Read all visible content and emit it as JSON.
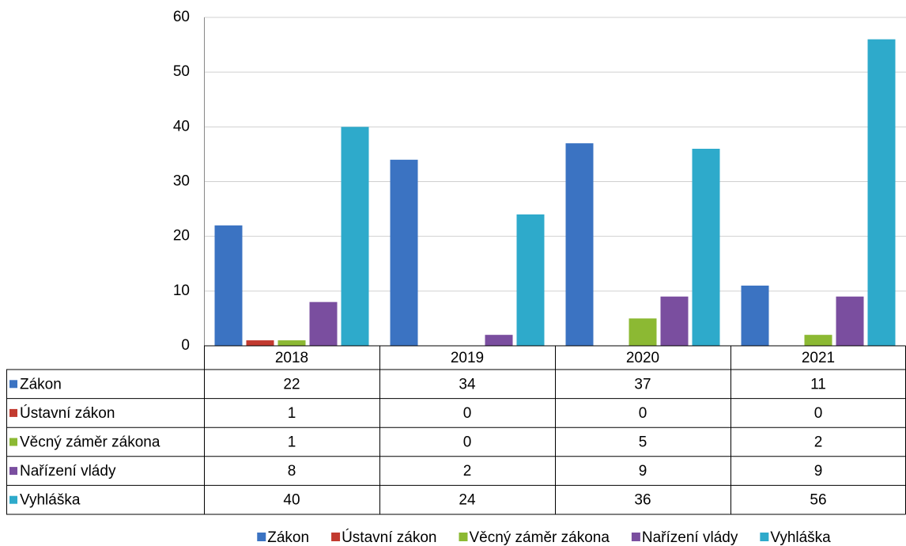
{
  "chart_data": {
    "type": "bar",
    "categories": [
      "2018",
      "2019",
      "2020",
      "2021"
    ],
    "series": [
      {
        "name": "Zákon",
        "color": "#3b73c2",
        "values": [
          22,
          34,
          37,
          11
        ]
      },
      {
        "name": "Ústavní zákon",
        "color": "#c23a2f",
        "values": [
          1,
          0,
          0,
          0
        ]
      },
      {
        "name": "Věcný záměr zákona",
        "color": "#8cb933",
        "values": [
          1,
          0,
          5,
          2
        ]
      },
      {
        "name": "Nařízení vlády",
        "color": "#7a4e9f",
        "values": [
          8,
          2,
          9,
          9
        ]
      },
      {
        "name": "Vyhláška",
        "color": "#2eaacb",
        "values": [
          40,
          24,
          36,
          56
        ]
      }
    ],
    "ylim": [
      0,
      60
    ],
    "yticks": [
      0,
      10,
      20,
      30,
      40,
      50,
      60
    ],
    "grid": true,
    "data_table": true,
    "legend": "bottom"
  }
}
